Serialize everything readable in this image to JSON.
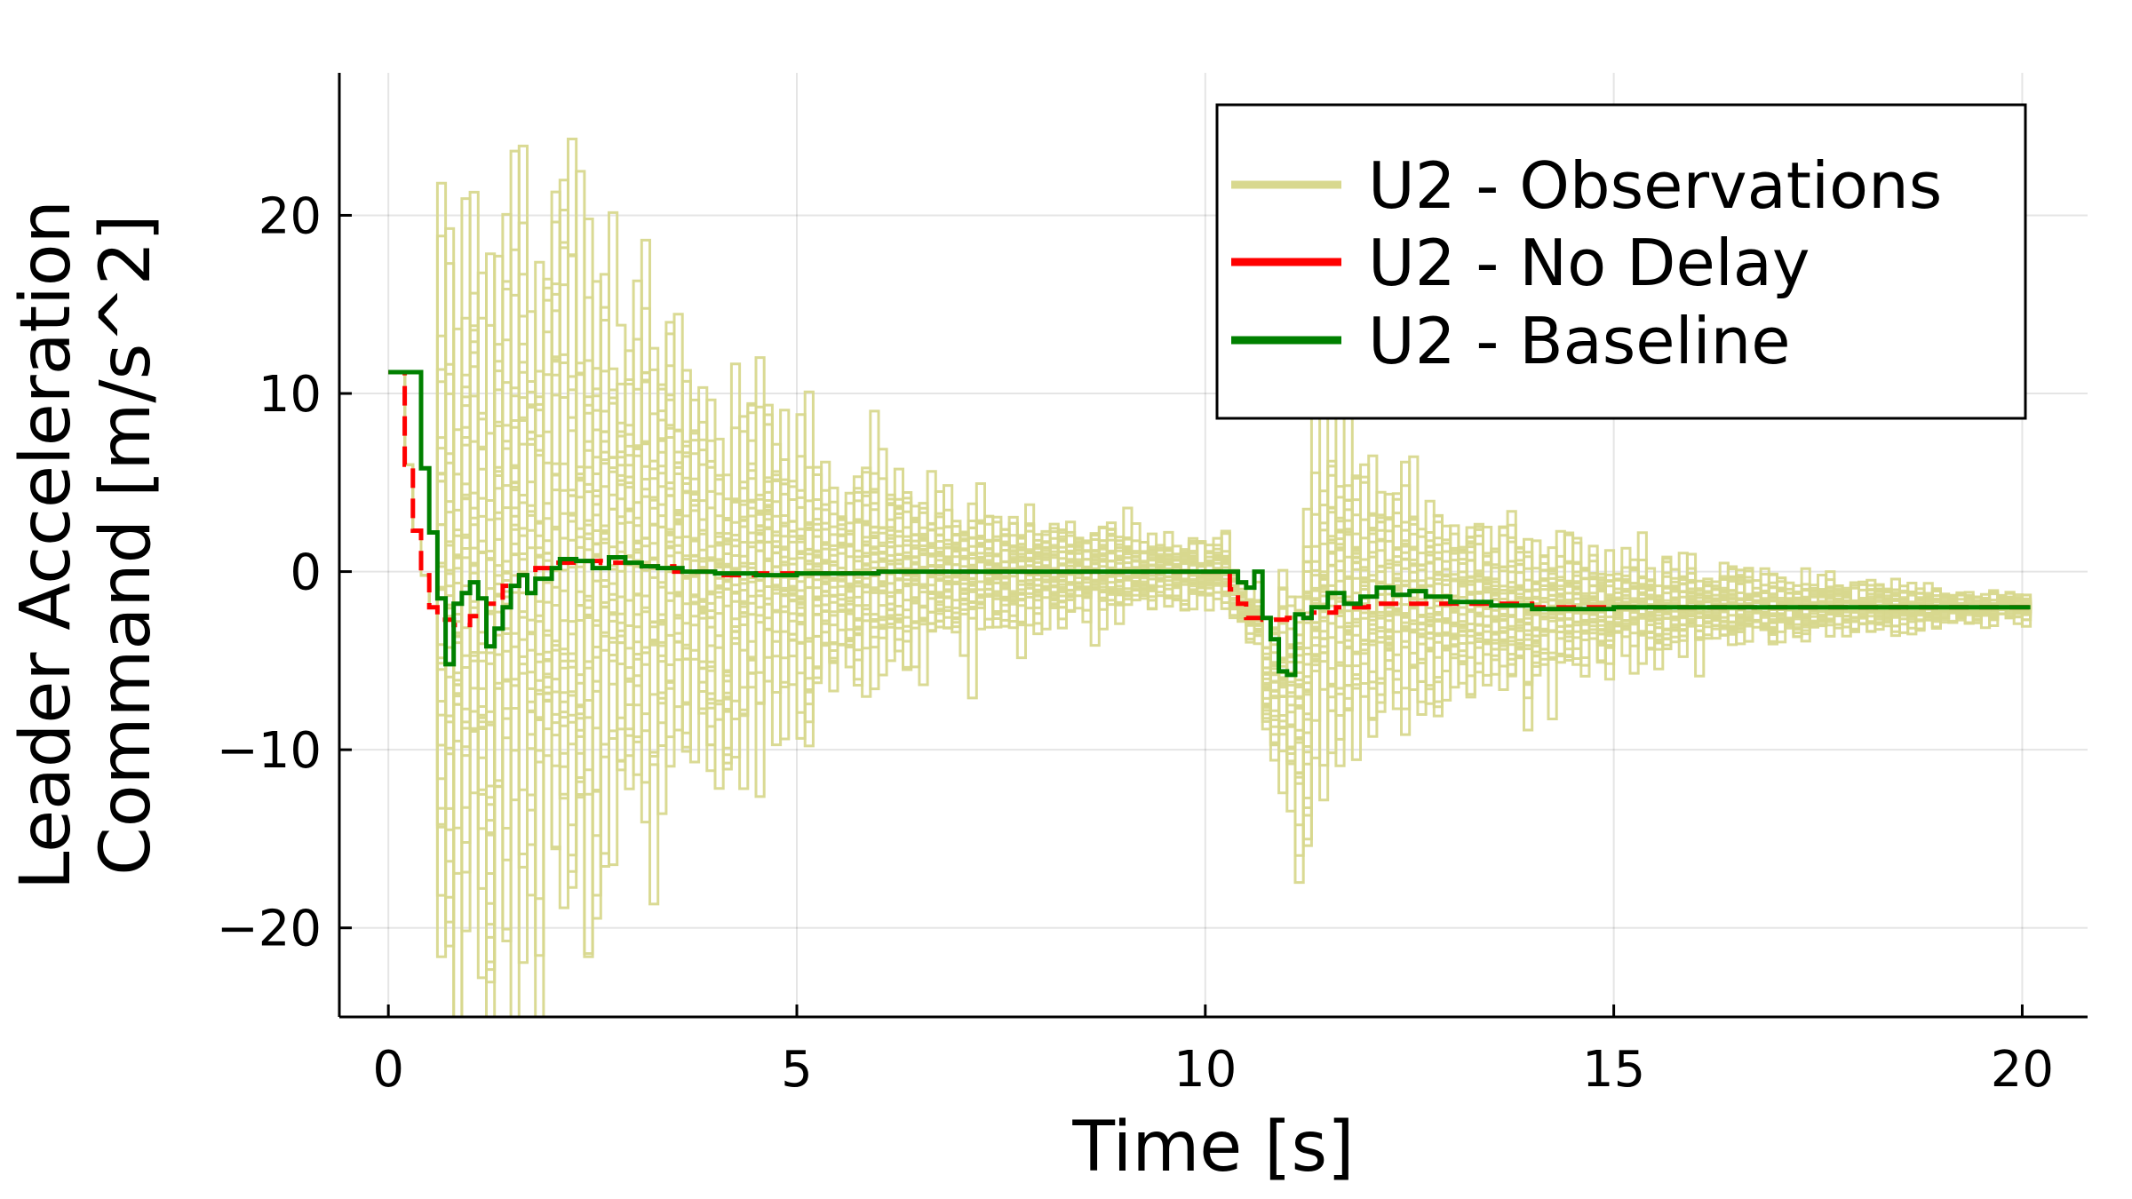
{
  "chart_data": {
    "type": "line",
    "xlabel": "Time [s]",
    "ylabel_lines": [
      "Leader Acceleration",
      "Command [m/s^2]"
    ],
    "xlim": [
      -0.6,
      20.8
    ],
    "ylim": [
      -25,
      28
    ],
    "x_ticks": [
      0,
      5,
      10,
      15,
      20
    ],
    "y_ticks": [
      -20,
      -10,
      0,
      10,
      20
    ],
    "x_tick_labels": [
      "0",
      "5",
      "10",
      "15",
      "20"
    ],
    "y_tick_labels": [
      "−20",
      "−10",
      "0",
      "10",
      "20"
    ],
    "grid": true,
    "legend_position": "top-right",
    "step": 0.1,
    "t_end": 20.1,
    "series": [
      {
        "name": "U2 - Observations",
        "color": "#d8d88e",
        "style": "solid",
        "kind": "ensemble",
        "note_trajectories": 30,
        "envelope": [
          {
            "t": 0.6,
            "amp": 10
          },
          {
            "t": 1.5,
            "amp": 12
          },
          {
            "t": 3.0,
            "amp": 8
          },
          {
            "t": 5.0,
            "amp": 3.5
          },
          {
            "t": 7.0,
            "amp": 2.0
          },
          {
            "t": 10.0,
            "amp": 0.8
          },
          {
            "t": 10.6,
            "amp": 0.8
          },
          {
            "t": 11.2,
            "amp": 5
          },
          {
            "t": 13.0,
            "amp": 3
          },
          {
            "t": 15.0,
            "amp": 1.5
          },
          {
            "t": 18.0,
            "amp": 0.7
          },
          {
            "t": 20.1,
            "amp": 0.3
          }
        ]
      },
      {
        "name": "U2 - No Delay",
        "color": "#ff0000",
        "style": "dashed",
        "points": [
          [
            0.0,
            11.2
          ],
          [
            0.1,
            11.2
          ],
          [
            0.2,
            6.0
          ],
          [
            0.3,
            2.3
          ],
          [
            0.4,
            -0.2
          ],
          [
            0.5,
            -2.0
          ],
          [
            0.6,
            -2.7
          ],
          [
            0.8,
            -3.0
          ],
          [
            1.0,
            -2.5
          ],
          [
            1.2,
            -1.8
          ],
          [
            1.4,
            -0.8
          ],
          [
            1.6,
            -0.2
          ],
          [
            1.8,
            0.2
          ],
          [
            2.0,
            0.5
          ],
          [
            2.3,
            0.6
          ],
          [
            2.6,
            0.5
          ],
          [
            3.0,
            0.3
          ],
          [
            3.5,
            0.0
          ],
          [
            4.0,
            -0.2
          ],
          [
            4.5,
            -0.1
          ],
          [
            5.0,
            -0.1
          ],
          [
            6.0,
            0.0
          ],
          [
            7.0,
            0.0
          ],
          [
            8.0,
            0.0
          ],
          [
            9.0,
            0.0
          ],
          [
            10.0,
            0.0
          ],
          [
            10.2,
            0.0
          ],
          [
            10.3,
            -1.0
          ],
          [
            10.4,
            -1.8
          ],
          [
            10.5,
            -2.6
          ],
          [
            10.7,
            -2.7
          ],
          [
            11.0,
            -2.6
          ],
          [
            11.3,
            -2.3
          ],
          [
            11.6,
            -2.0
          ],
          [
            12.0,
            -1.8
          ],
          [
            12.5,
            -1.8
          ],
          [
            13.0,
            -1.8
          ],
          [
            14.0,
            -2.0
          ],
          [
            15.0,
            -2.0
          ],
          [
            16.0,
            -2.0
          ],
          [
            17.0,
            -2.0
          ],
          [
            18.0,
            -2.0
          ],
          [
            19.0,
            -2.0
          ],
          [
            20.0,
            -2.0
          ],
          [
            20.1,
            -2.0
          ]
        ]
      },
      {
        "name": "U2 - Baseline",
        "color": "#008000",
        "style": "solid",
        "points": [
          [
            0.0,
            11.2
          ],
          [
            0.3,
            11.2
          ],
          [
            0.4,
            5.8
          ],
          [
            0.5,
            2.2
          ],
          [
            0.6,
            -1.5
          ],
          [
            0.7,
            -5.2
          ],
          [
            0.8,
            -1.8
          ],
          [
            0.9,
            -1.2
          ],
          [
            1.0,
            -0.6
          ],
          [
            1.1,
            -1.5
          ],
          [
            1.2,
            -4.2
          ],
          [
            1.3,
            -3.2
          ],
          [
            1.4,
            -2.0
          ],
          [
            1.5,
            -0.8
          ],
          [
            1.6,
            -0.2
          ],
          [
            1.7,
            -1.2
          ],
          [
            1.8,
            -0.4
          ],
          [
            2.0,
            0.2
          ],
          [
            2.1,
            0.7
          ],
          [
            2.3,
            0.6
          ],
          [
            2.5,
            0.2
          ],
          [
            2.7,
            0.8
          ],
          [
            2.9,
            0.5
          ],
          [
            3.1,
            0.3
          ],
          [
            3.3,
            0.2
          ],
          [
            3.6,
            0.0
          ],
          [
            4.0,
            -0.1
          ],
          [
            4.5,
            -0.2
          ],
          [
            5.0,
            -0.1
          ],
          [
            6.0,
            0.0
          ],
          [
            7.0,
            0.0
          ],
          [
            8.0,
            0.0
          ],
          [
            9.0,
            0.0
          ],
          [
            10.0,
            0.0
          ],
          [
            10.3,
            0.0
          ],
          [
            10.4,
            -0.6
          ],
          [
            10.5,
            -0.9
          ],
          [
            10.6,
            0.0
          ],
          [
            10.7,
            -2.6
          ],
          [
            10.8,
            -3.8
          ],
          [
            10.9,
            -5.6
          ],
          [
            11.0,
            -5.8
          ],
          [
            11.1,
            -2.4
          ],
          [
            11.2,
            -2.6
          ],
          [
            11.3,
            -2.0
          ],
          [
            11.5,
            -1.2
          ],
          [
            11.7,
            -1.8
          ],
          [
            11.9,
            -1.4
          ],
          [
            12.1,
            -0.9
          ],
          [
            12.3,
            -1.3
          ],
          [
            12.5,
            -1.1
          ],
          [
            12.7,
            -1.4
          ],
          [
            13.0,
            -1.7
          ],
          [
            13.5,
            -1.9
          ],
          [
            14.0,
            -2.1
          ],
          [
            15.0,
            -2.0
          ],
          [
            16.0,
            -2.0
          ],
          [
            17.0,
            -2.0
          ],
          [
            18.0,
            -2.0
          ],
          [
            19.0,
            -2.0
          ],
          [
            20.0,
            -2.0
          ],
          [
            20.1,
            -2.0
          ]
        ]
      }
    ]
  }
}
